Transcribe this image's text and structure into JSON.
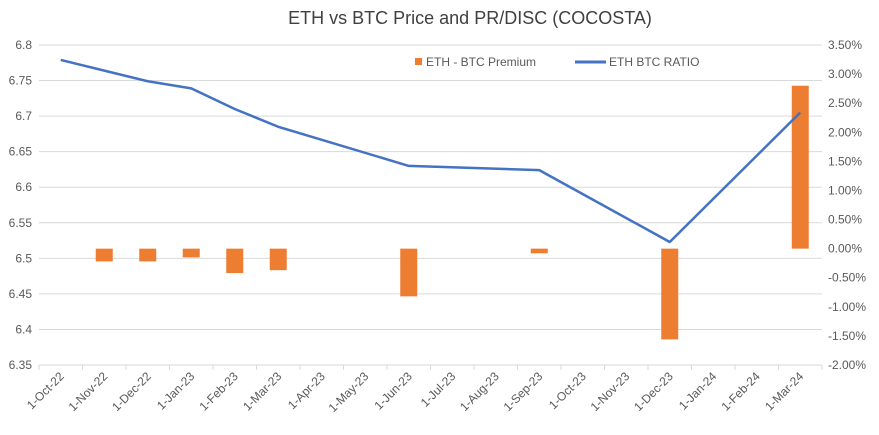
{
  "chart_data": {
    "type": "bar+line",
    "title": "ETH vs BTC Price and PR/DISC (COCOSTA)",
    "categories": [
      "1-Oct-22",
      "1-Nov-22",
      "1-Dec-22",
      "1-Jan-23",
      "1-Feb-23",
      "1-Mar-23",
      "1-Apr-23",
      "1-May-23",
      "1-Jun-23",
      "1-Jul-23",
      "1-Aug-23",
      "1-Sep-23",
      "1-Oct-23",
      "1-Nov-23",
      "1-Dec-23",
      "1-Jan-24",
      "1-Feb-24",
      "1-Mar-24"
    ],
    "series": [
      {
        "name": "ETH - BTC Premium",
        "type": "bar",
        "axis": "right",
        "color": "#ED7D31",
        "values": [
          null,
          -0.22,
          -0.22,
          -0.15,
          -0.42,
          -0.37,
          null,
          null,
          -0.82,
          null,
          null,
          -0.08,
          null,
          null,
          -1.56,
          null,
          null,
          2.8
        ]
      },
      {
        "name": "ETH BTC RATIO",
        "type": "line",
        "axis": "left",
        "color": "#4472C4",
        "points": [
          [
            0,
            6.779
          ],
          [
            1,
            6.764
          ],
          [
            2,
            6.749
          ],
          [
            3,
            6.739
          ],
          [
            4,
            6.71
          ],
          [
            5,
            6.685
          ],
          [
            8,
            6.63
          ],
          [
            11,
            6.624
          ],
          [
            14,
            6.523
          ],
          [
            17,
            6.705
          ]
        ]
      }
    ],
    "left_axis": {
      "min": 6.35,
      "max": 6.8,
      "step": 0.05,
      "tick_labels": [
        "6.8",
        "6.75",
        "6.7",
        "6.65",
        "6.6",
        "6.55",
        "6.5",
        "6.45",
        "6.4",
        "6.35"
      ]
    },
    "right_axis": {
      "min": -2.0,
      "max": 3.5,
      "step": 0.5,
      "unit": "%",
      "tick_labels": [
        "3.50%",
        "3.00%",
        "2.50%",
        "2.00%",
        "1.50%",
        "1.00%",
        "0.50%",
        "0.00%",
        "-0.50%",
        "-1.00%",
        "-1.50%",
        "-2.00%"
      ]
    },
    "legend_placement": "top-right",
    "grid": true
  }
}
